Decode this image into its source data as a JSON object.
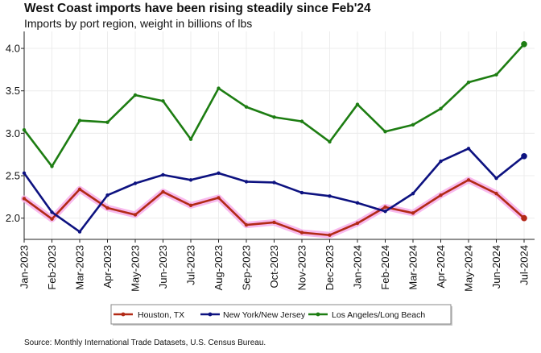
{
  "title": "West Coast imports have been rising steadily since Feb'24",
  "subtitle": "Imports by port region, weight in billions of lbs",
  "source": "Source: Monthly International Trade Datasets, U.S. Census Bureau.",
  "chart_data": {
    "type": "line",
    "title": "West Coast imports have been rising steadily since Feb'24",
    "subtitle": "Imports by port region, weight in billions of lbs",
    "xlabel": "",
    "ylabel": "",
    "x": [
      "Jan-2023",
      "Feb-2023",
      "Mar-2023",
      "Apr-2023",
      "May-2023",
      "Jun-2023",
      "Jul-2023",
      "Aug-2023",
      "Sep-2023",
      "Oct-2023",
      "Nov-2023",
      "Dec-2023",
      "Jan-2024",
      "Feb-2024",
      "Mar-2024",
      "Apr-2024",
      "May-2024",
      "Jun-2024",
      "Jul-2024"
    ],
    "ylim": [
      1.75,
      4.2
    ],
    "yticks": [
      2.0,
      2.5,
      3.0,
      3.5,
      4.0
    ],
    "ytick_labels": [
      "2.0",
      "2.5",
      "3.0",
      "3.5",
      "4.0"
    ],
    "grid": true,
    "legend_position": "bottom",
    "series": [
      {
        "name": "Houston, TX",
        "color": "#b22a16",
        "glow": "#f7b3ec",
        "values": [
          2.23,
          1.99,
          2.34,
          2.12,
          2.04,
          2.31,
          2.15,
          2.24,
          1.92,
          1.95,
          1.83,
          1.8,
          1.94,
          2.13,
          2.06,
          2.27,
          2.45,
          2.29,
          2.0
        ]
      },
      {
        "name": "New York/New Jersey",
        "color": "#0d1280",
        "values": [
          2.53,
          2.07,
          1.84,
          2.27,
          2.41,
          2.51,
          2.45,
          2.53,
          2.43,
          2.42,
          2.3,
          2.26,
          2.18,
          2.08,
          2.29,
          2.67,
          2.82,
          2.47,
          2.73
        ]
      },
      {
        "name": "Los Angeles/Long Beach",
        "color": "#1d7d12",
        "values": [
          3.04,
          2.61,
          3.15,
          3.13,
          3.45,
          3.38,
          2.93,
          3.53,
          3.31,
          3.19,
          3.14,
          2.9,
          3.34,
          3.02,
          3.1,
          3.29,
          3.6,
          3.69,
          4.05
        ]
      }
    ]
  }
}
